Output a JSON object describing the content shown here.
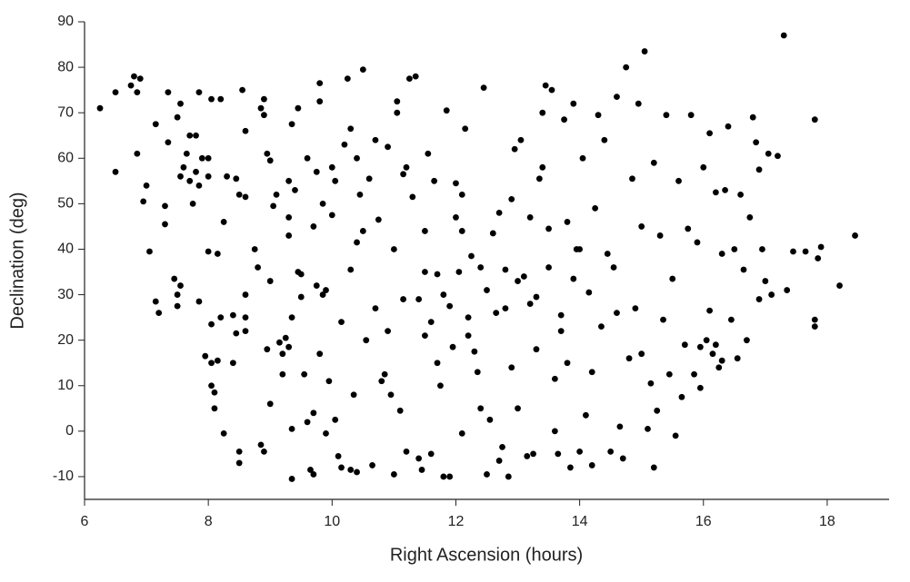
{
  "chart_data": {
    "type": "scatter",
    "x_label": "Right Ascension (hours)",
    "y_label": "Declination (deg)",
    "color": "#000000",
    "xlim": [
      6,
      19
    ],
    "xticks": [
      6,
      8,
      10,
      12,
      14,
      16,
      18
    ],
    "ylim": [
      -15,
      90
    ],
    "yticks": [
      -10,
      0,
      10,
      20,
      30,
      40,
      50,
      60,
      70,
      80,
      90
    ],
    "x": [
      6.25,
      6.5,
      6.5,
      6.75,
      6.8,
      6.9,
      6.85,
      6.85,
      6.95,
      7.0,
      7.05,
      7.15,
      7.15,
      7.2,
      7.3,
      7.3,
      7.35,
      7.35,
      7.45,
      7.5,
      7.5,
      7.55,
      7.5,
      7.55,
      7.55,
      7.6,
      7.7,
      7.65,
      7.7,
      7.8,
      7.75,
      7.8,
      7.85,
      7.85,
      7.85,
      7.9,
      7.95,
      8.0,
      8.0,
      8.0,
      8.05,
      8.05,
      8.05,
      8.1,
      8.1,
      8.05,
      8.15,
      8.2,
      8.15,
      8.2,
      8.25,
      8.25,
      8.3,
      8.4,
      8.4,
      8.45,
      8.5,
      8.5,
      8.45,
      8.5,
      8.55,
      8.6,
      8.6,
      8.6,
      8.6,
      8.6,
      8.75,
      8.8,
      8.85,
      8.85,
      8.9,
      8.9,
      8.9,
      8.95,
      8.95,
      9.0,
      9.0,
      9.0,
      9.05,
      9.1,
      9.15,
      9.2,
      9.2,
      9.25,
      9.3,
      9.3,
      9.3,
      9.35,
      9.35,
      9.35,
      9.35,
      9.4,
      9.45,
      9.45,
      9.5,
      9.5,
      9.55,
      9.6,
      9.6,
      9.65,
      9.7,
      9.7,
      9.7,
      9.75,
      9.75,
      9.8,
      9.8,
      9.8,
      9.85,
      9.85,
      9.9,
      9.95,
      10.0,
      10.0,
      10.05,
      10.05,
      10.1,
      10.15,
      10.15,
      10.2,
      10.25,
      10.3,
      10.3,
      10.3,
      10.35,
      10.4,
      10.4,
      10.45,
      10.5,
      10.5,
      10.55,
      10.6,
      10.65,
      10.7,
      10.75,
      10.8,
      10.85,
      10.9,
      10.95,
      11.0,
      11.0,
      11.05,
      11.05,
      11.1,
      11.15,
      11.15,
      11.2,
      11.25,
      11.3,
      11.35,
      11.4,
      11.45,
      11.5,
      11.5,
      11.55,
      11.6,
      11.65,
      11.7,
      11.7,
      11.75,
      11.8,
      11.85,
      11.9,
      11.9,
      11.95,
      12.0,
      12.05,
      12.1,
      12.1,
      12.15,
      12.2,
      12.25,
      12.3,
      12.35,
      12.4,
      12.45,
      12.5,
      12.55,
      12.6,
      12.65,
      12.7,
      12.75,
      12.8,
      12.85,
      12.9,
      12.95,
      13.0,
      13.05,
      13.1,
      13.15,
      13.2,
      13.25,
      13.3,
      13.35,
      13.4,
      13.45,
      13.5,
      13.55,
      13.6,
      13.6,
      13.65,
      13.7,
      13.75,
      13.8,
      13.85,
      13.9,
      13.95,
      14.0,
      14.05,
      14.1,
      14.15,
      14.2,
      14.25,
      14.3,
      14.35,
      14.4,
      14.5,
      14.55,
      14.6,
      14.65,
      14.7,
      14.75,
      14.8,
      14.85,
      14.9,
      14.95,
      15.0,
      15.05,
      15.1,
      15.15,
      15.2,
      15.25,
      15.3,
      15.35,
      15.4,
      15.45,
      15.5,
      15.55,
      15.6,
      15.65,
      15.7,
      15.75,
      15.8,
      15.85,
      15.9,
      15.95,
      16.0,
      16.05,
      16.1,
      16.15,
      16.2,
      16.25,
      16.3,
      16.35,
      16.4,
      16.45,
      16.5,
      16.55,
      16.6,
      16.65,
      16.7,
      16.75,
      16.8,
      16.85,
      16.9,
      16.95,
      17.0,
      17.05,
      17.1,
      17.2,
      17.3,
      17.35,
      17.45,
      17.8,
      17.8,
      17.8,
      17.9,
      17.85,
      18.2,
      18.45,
      17.65,
      16.9,
      15.95,
      16.1,
      16.2,
      16.3,
      15.2,
      14.45,
      13.9,
      13.3,
      12.8,
      12.4,
      11.6,
      11.4,
      10.9,
      10.4,
      9.9,
      9.3,
      11.8,
      12.0,
      12.2,
      12.5,
      12.7,
      13.0,
      13.2,
      13.5,
      13.7,
      14.0,
      14.2,
      13.8,
      13.4,
      12.9,
      12.1,
      11.5,
      11.2,
      14.6,
      15.0,
      10.7
    ],
    "values": [
      71,
      74.5,
      57,
      76,
      78,
      77.5,
      74.5,
      61,
      50.5,
      54,
      39.5,
      28.5,
      67.5,
      26,
      45.5,
      49.5,
      74.5,
      63.5,
      33.5,
      30,
      27.5,
      72,
      69,
      56,
      32,
      58,
      65,
      61,
      55,
      65,
      50,
      57,
      54,
      74.5,
      28.5,
      60,
      16.5,
      60,
      56,
      39.5,
      15,
      23.5,
      10,
      8.5,
      5,
      73,
      39,
      25,
      15.5,
      73,
      46,
      -0.5,
      56,
      25.5,
      15,
      21.5,
      -4.5,
      -7,
      55.5,
      52,
      75,
      25,
      22,
      30,
      66,
      51.5,
      40,
      36,
      -3,
      71,
      -4.5,
      73,
      69.5,
      61,
      18,
      6,
      33,
      59.5,
      49.5,
      52,
      19.5,
      17,
      12.5,
      20.5,
      18.5,
      55,
      47,
      -10.5,
      0.5,
      25,
      67.5,
      53,
      71,
      35,
      34.5,
      29.5,
      12.5,
      60,
      2,
      -8.5,
      -9.5,
      4,
      45,
      32,
      57,
      76.5,
      72.5,
      17,
      30,
      50,
      -0.5,
      11,
      58,
      47.5,
      2.5,
      55,
      -5.5,
      24,
      -8,
      63,
      77.5,
      -8.5,
      66.5,
      35.5,
      8,
      -9,
      60,
      52,
      79.5,
      44,
      20,
      55.5,
      -7.5,
      64,
      46.5,
      11,
      12.5,
      62.5,
      8,
      -9.5,
      40,
      70,
      72.5,
      4.5,
      56.5,
      29,
      -4.5,
      77.5,
      51.5,
      78,
      -6,
      -8.5,
      21,
      44,
      61,
      -5,
      55,
      34.5,
      15,
      10,
      -10,
      70.5,
      -10,
      27.5,
      18.5,
      54.5,
      35,
      44,
      -0.5,
      66.5,
      21,
      38.5,
      17.5,
      13,
      5,
      75.5,
      -9.5,
      2.5,
      43.5,
      26,
      -6.5,
      -3.5,
      35.5,
      -10,
      51,
      62,
      5,
      64,
      34,
      -5.5,
      47,
      -5,
      18,
      55.5,
      70,
      76,
      44.5,
      75,
      0,
      11.5,
      -5,
      25.5,
      68.5,
      15,
      -8,
      72,
      40,
      -4.5,
      60,
      3.5,
      30.5,
      -7.5,
      49,
      69.5,
      23,
      64,
      -4.5,
      36,
      73.5,
      1,
      -6,
      80,
      16,
      55.5,
      27,
      72,
      45,
      83.5,
      0.5,
      10.5,
      -8,
      4.5,
      43,
      24.5,
      69.5,
      12.5,
      33.5,
      -1,
      55,
      7.5,
      19,
      44.5,
      69.5,
      12.5,
      41.5,
      9.5,
      58,
      20,
      65.5,
      17,
      52.5,
      14,
      39,
      53,
      67,
      24.5,
      40,
      16,
      52,
      35.5,
      20,
      47,
      69,
      63.5,
      29,
      40,
      33,
      61,
      30,
      60.5,
      87,
      31,
      39.5,
      68.5,
      24.5,
      23,
      40.5,
      38,
      32,
      43,
      39.5,
      57.5,
      18.5,
      26.5,
      19,
      15.5,
      59,
      39,
      33.5,
      29.5,
      27,
      36,
      24,
      29,
      22,
      41.5,
      31,
      43,
      30,
      47,
      25,
      31,
      48,
      33,
      28,
      36,
      22,
      40,
      13,
      46,
      58,
      14,
      52,
      35,
      58,
      26,
      17,
      27
    ]
  }
}
